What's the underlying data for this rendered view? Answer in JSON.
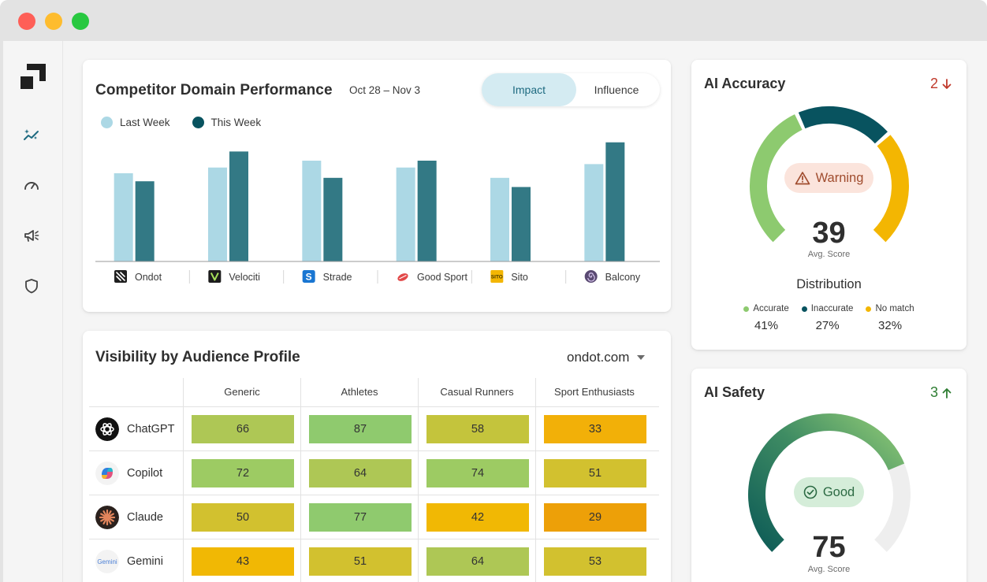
{
  "colors": {
    "last_week": "#acd8e5",
    "this_week": "#337985",
    "accurate": "#8dca6f",
    "inaccurate": "#08535f",
    "no_match": "#f3b602",
    "warning_bg": "#fbe4dc",
    "warning_text": "#a04c2e",
    "good_bg": "#d5edd9",
    "good_text": "#2c6a43",
    "delta_down": "#c0392b",
    "delta_up": "#2e7d32"
  },
  "competitor": {
    "title": "Competitor Domain Performance",
    "date_range": "Oct 28 – Nov 3",
    "toggle": {
      "impact": "Impact",
      "influence": "Influence"
    },
    "legend": {
      "last_week": "Last Week",
      "this_week": "This Week"
    },
    "brand_icons": [
      "ondot-logo-icon",
      "velociti-logo-icon",
      "strade-logo-icon",
      "good-sport-logo-icon",
      "sito-logo-icon",
      "balcony-logo-icon"
    ]
  },
  "chart_data": {
    "type": "bar",
    "title": "Competitor Domain Performance",
    "categories": [
      "Ondot",
      "Velociti",
      "Strade",
      "Good Sport",
      "Sito",
      "Balcony"
    ],
    "series": [
      {
        "name": "Last Week",
        "values": [
          77,
          82,
          88,
          82,
          73,
          85
        ]
      },
      {
        "name": "This Week",
        "values": [
          70,
          96,
          73,
          88,
          65,
          104
        ]
      }
    ],
    "ylim": [
      0,
      110
    ],
    "grid": false,
    "legend_position": "top-left",
    "xlabel": "",
    "ylabel": ""
  },
  "visibility": {
    "title": "Visibility by Audience Profile",
    "domain_select": "ondot.com",
    "columns": [
      "Generic",
      "Athletes",
      "Casual Runners",
      "Sport Enthusiasts"
    ],
    "rows": [
      {
        "name": "ChatGPT",
        "icon": "chatgpt-icon",
        "values": [
          "66",
          "87",
          "58",
          "33"
        ]
      },
      {
        "name": "Copilot",
        "icon": "copilot-icon",
        "values": [
          "72",
          "64",
          "74",
          "51"
        ]
      },
      {
        "name": "Claude",
        "icon": "claude-icon",
        "values": [
          "50",
          "77",
          "42",
          "29"
        ]
      },
      {
        "name": "Gemini",
        "icon": "gemini-icon",
        "values": [
          "43",
          "51",
          "64",
          "53"
        ]
      }
    ]
  },
  "accuracy": {
    "title": "AI Accuracy",
    "delta": "2",
    "delta_direction": "down",
    "badge": "Warning",
    "score": "39",
    "score_label": "Avg. Score",
    "distribution_title": "Distribution",
    "distribution": [
      {
        "label": "Accurate",
        "value": "41%",
        "pct": 41
      },
      {
        "label": "Inaccurate",
        "value": "27%",
        "pct": 27
      },
      {
        "label": "No match",
        "value": "32%",
        "pct": 32
      }
    ]
  },
  "safety": {
    "title": "AI Safety",
    "delta": "3",
    "delta_direction": "up",
    "badge": "Good",
    "score": "75",
    "score_label": "Avg. Score"
  }
}
